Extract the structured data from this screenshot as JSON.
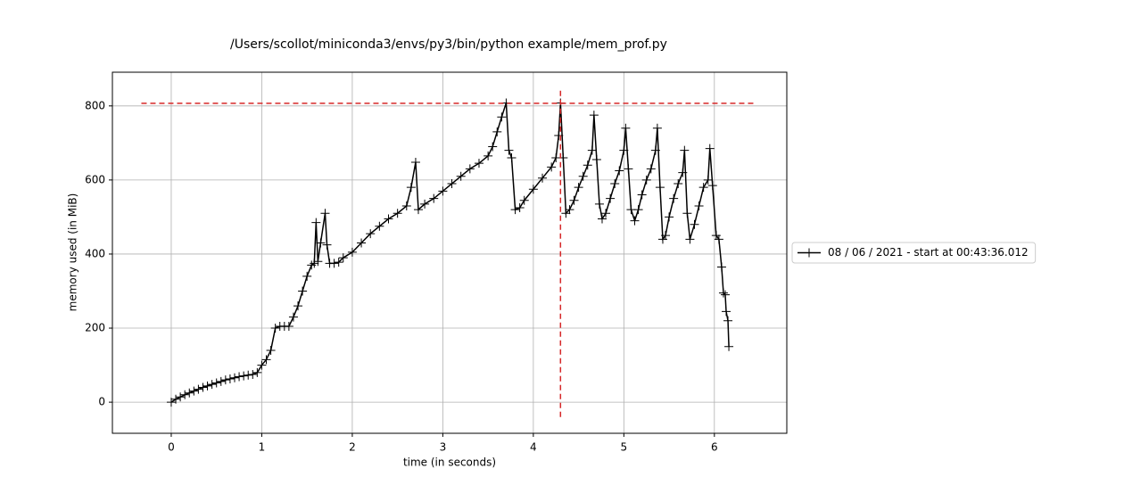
{
  "chart_data": {
    "type": "line",
    "title": "/Users/scollot/miniconda3/envs/py3/bin/python example/mem_prof.py",
    "xlabel": "time (in seconds)",
    "ylabel": "memory used (in MiB)",
    "x": [
      0,
      0.05,
      0.1,
      0.15,
      0.2,
      0.25,
      0.3,
      0.35,
      0.4,
      0.45,
      0.5,
      0.55,
      0.6,
      0.65,
      0.7,
      0.75,
      0.8,
      0.85,
      0.9,
      0.95,
      1.0,
      1.05,
      1.1,
      1.15,
      1.2,
      1.25,
      1.3,
      1.35,
      1.4,
      1.45,
      1.5,
      1.55,
      1.58,
      1.6,
      1.62,
      1.65,
      1.7,
      1.72,
      1.75,
      1.8,
      1.85,
      1.9,
      2.0,
      2.1,
      2.2,
      2.3,
      2.4,
      2.5,
      2.6,
      2.65,
      2.7,
      2.73,
      2.8,
      2.9,
      3.0,
      3.1,
      3.2,
      3.3,
      3.4,
      3.5,
      3.55,
      3.6,
      3.65,
      3.7,
      3.73,
      3.76,
      3.8,
      3.85,
      3.9,
      4.0,
      4.1,
      4.2,
      4.25,
      4.28,
      4.3,
      4.33,
      4.36,
      4.4,
      4.45,
      4.5,
      4.55,
      4.6,
      4.65,
      4.67,
      4.7,
      4.73,
      4.76,
      4.8,
      4.85,
      4.9,
      4.95,
      5.0,
      5.02,
      5.05,
      5.08,
      5.12,
      5.16,
      5.2,
      5.25,
      5.3,
      5.35,
      5.37,
      5.4,
      5.43,
      5.46,
      5.5,
      5.55,
      5.6,
      5.65,
      5.67,
      5.7,
      5.73,
      5.78,
      5.83,
      5.88,
      5.93,
      5.95,
      5.98,
      6.02,
      6.05,
      6.08,
      6.1,
      6.12,
      6.13,
      6.15,
      6.16
    ],
    "series": [
      {
        "name": "08 / 06 / 2021 - start at 00:43:36.012",
        "color": "#000000",
        "marker": "+",
        "values": [
          0,
          8,
          14,
          20,
          25,
          30,
          35,
          40,
          44,
          48,
          52,
          56,
          60,
          63,
          66,
          69,
          71,
          73,
          75,
          80,
          100,
          115,
          140,
          200,
          205,
          205,
          205,
          230,
          260,
          300,
          340,
          370,
          375,
          485,
          380,
          430,
          510,
          425,
          375,
          375,
          378,
          390,
          405,
          430,
          455,
          475,
          495,
          510,
          530,
          580,
          648,
          520,
          535,
          550,
          570,
          590,
          610,
          630,
          645,
          665,
          690,
          730,
          770,
          808,
          680,
          660,
          520,
          525,
          545,
          575,
          605,
          635,
          660,
          720,
          808,
          660,
          510,
          520,
          545,
          580,
          610,
          640,
          680,
          775,
          655,
          535,
          495,
          510,
          550,
          590,
          625,
          680,
          740,
          630,
          520,
          490,
          520,
          560,
          600,
          630,
          680,
          740,
          580,
          440,
          450,
          500,
          550,
          590,
          620,
          680,
          510,
          440,
          480,
          530,
          580,
          600,
          685,
          585,
          450,
          440,
          365,
          295,
          290,
          245,
          220,
          150
        ]
      }
    ],
    "hlines": [
      {
        "y": 807,
        "xmin": -0.33,
        "xmax": 6.45,
        "color": "#d62728"
      }
    ],
    "vlines": [
      {
        "x": 4.3,
        "ymin": -40,
        "ymax": 850,
        "color": "#d62728"
      }
    ],
    "xlim": [
      -0.65,
      6.8
    ],
    "ylim": [
      -84,
      891
    ],
    "xticks": [
      0,
      1,
      2,
      3,
      4,
      5,
      6
    ],
    "yticks": [
      0,
      200,
      400,
      600,
      800
    ],
    "grid": true,
    "legend": "right"
  }
}
